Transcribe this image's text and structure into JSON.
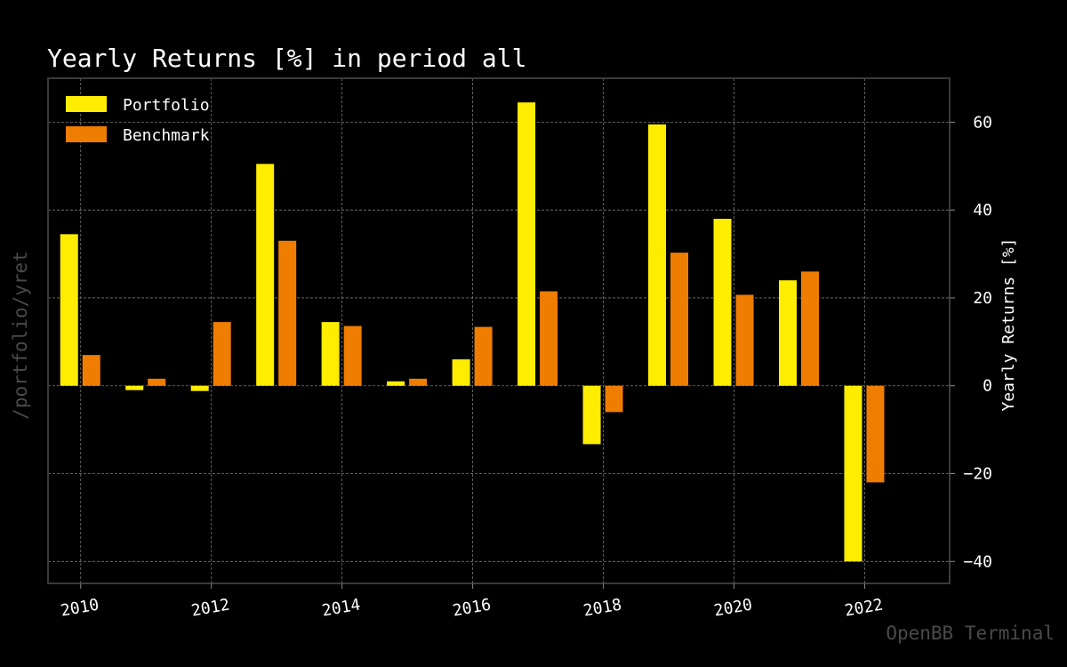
{
  "side_label": "/portfolio/yret",
  "watermark": "OpenBB Terminal",
  "chart_data": {
    "type": "bar",
    "title": "Yearly Returns [%] in period all",
    "xlabel": "",
    "ylabel": "Yearly Returns [%]",
    "y_axis_side": "right",
    "xlim": [
      2009.5,
      2023.3
    ],
    "ylim": [
      -45,
      70
    ],
    "x_ticks": [
      2010,
      2012,
      2014,
      2016,
      2018,
      2020,
      2022
    ],
    "y_ticks": [
      -40,
      -20,
      0,
      20,
      40,
      60
    ],
    "y_tick_labels": [
      "−40",
      "−20",
      "0",
      "20",
      "40",
      "60"
    ],
    "grid": true,
    "legend_position": "top-left",
    "x": [
      2010,
      2011,
      2012,
      2013,
      2014,
      2015,
      2016,
      2017,
      2018,
      2019,
      2020,
      2021,
      2022
    ],
    "series": [
      {
        "name": "Portfolio",
        "color": "#ffed00",
        "values": [
          34.5,
          -1.0,
          -1.2,
          50.5,
          14.5,
          1.0,
          6.0,
          64.5,
          -13.3,
          59.5,
          38.0,
          24.0,
          -40.0
        ]
      },
      {
        "name": "Benchmark",
        "color": "#ef7d00",
        "values": [
          7.0,
          1.6,
          14.5,
          33.0,
          13.6,
          1.6,
          13.4,
          21.5,
          -6.0,
          30.3,
          20.7,
          26.0,
          -22.0
        ]
      }
    ]
  }
}
